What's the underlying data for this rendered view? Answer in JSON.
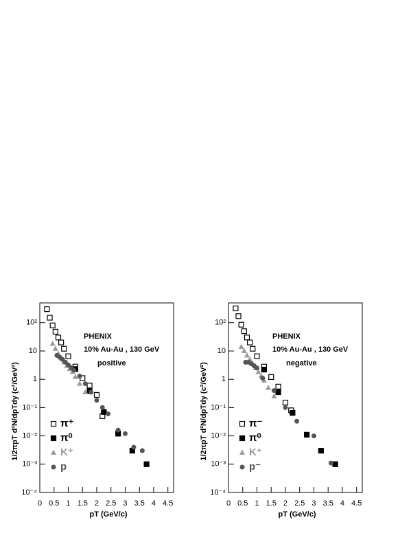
{
  "chart_data": [
    {
      "type": "scatter",
      "annotations": [
        "PHENIX",
        "10% Au-Au , 130 GeV",
        "positive"
      ],
      "x_label": "pT (GeV/c)",
      "y_label": "1/2πpT d²N/dpTdy (c²/GeV²)",
      "xlim": [
        0,
        4.7
      ],
      "ylim": [
        0.0001,
        500
      ],
      "log_y": true,
      "xticks": [
        0,
        0.5,
        1,
        1.5,
        2,
        2.5,
        3,
        3.5,
        4,
        4.5
      ],
      "yticks": [
        {
          "value": 0.0001,
          "label": "10⁻⁴"
        },
        {
          "value": 0.001,
          "label": "10⁻³"
        },
        {
          "value": 0.01,
          "label": "10⁻²"
        },
        {
          "value": 0.1,
          "label": "10⁻¹"
        },
        1,
        10,
        {
          "value": 100,
          "label": "10²"
        }
      ],
      "legend": "lower left",
      "series": [
        {
          "name": "π⁺",
          "color": "#000000",
          "marker": "open-square",
          "x": [
            0.25,
            0.35,
            0.45,
            0.55,
            0.65,
            0.75,
            0.85,
            1.0,
            1.25,
            1.5,
            1.75,
            2.0,
            2.2
          ],
          "values": [
            300,
            150,
            80,
            48,
            30,
            20,
            12,
            6.5,
            2.8,
            1.1,
            0.6,
            0.28,
            0.05
          ]
        },
        {
          "name": "π⁰",
          "color": "#000000",
          "marker": "square",
          "x": [
            1.25,
            1.75,
            2.25,
            2.75,
            3.25,
            3.75
          ],
          "values": [
            2.3,
            0.38,
            0.07,
            0.012,
            0.003,
            0.001
          ]
        },
        {
          "name": "K⁺",
          "color": "#999999",
          "marker": "triangle",
          "x": [
            0.45,
            0.55,
            0.65,
            0.75,
            0.85,
            0.95,
            1.05,
            1.15,
            1.25,
            1.4,
            1.6
          ],
          "values": [
            18,
            12,
            8,
            5.5,
            4,
            3,
            2.3,
            1.8,
            1.2,
            0.7,
            0.35
          ]
        },
        {
          "name": "p",
          "color": "#555555",
          "marker": "circle",
          "x": [
            0.6,
            0.7,
            0.8,
            0.9,
            1.0,
            1.1,
            1.2,
            1.4,
            1.6,
            1.8,
            2.0,
            2.2,
            2.4,
            2.75,
            3.0,
            3.3,
            3.6
          ],
          "values": [
            7,
            6,
            5,
            4,
            3.2,
            2.6,
            2.1,
            1.3,
            0.7,
            0.35,
            0.18,
            0.1,
            0.06,
            0.016,
            0.012,
            0.004,
            0.003
          ]
        }
      ]
    },
    {
      "type": "scatter",
      "annotations": [
        "PHENIX",
        "10% Au-Au , 130 GeV",
        "negative"
      ],
      "x_label": "pT (GeV/c)",
      "y_label": "1/2πpT d²N/dpTdy (c²/GeV²)",
      "xlim": [
        0,
        4.7
      ],
      "ylim": [
        0.0001,
        500
      ],
      "log_y": true,
      "xticks": [
        0,
        0.5,
        1,
        1.5,
        2,
        2.5,
        3,
        3.5,
        4,
        4.5
      ],
      "yticks": [
        {
          "value": 0.0001,
          "label": "10⁻⁴"
        },
        {
          "value": 0.001,
          "label": "10⁻³"
        },
        {
          "value": 0.01,
          "label": "10⁻²"
        },
        {
          "value": 0.1,
          "label": "10⁻¹"
        },
        1,
        10,
        {
          "value": 100,
          "label": "10²"
        }
      ],
      "legend": "lower left",
      "series": [
        {
          "name": "π⁻",
          "color": "#000000",
          "marker": "open-square",
          "x": [
            0.25,
            0.35,
            0.45,
            0.55,
            0.65,
            0.75,
            0.85,
            1.0,
            1.25,
            1.5,
            1.75,
            2.0,
            2.2
          ],
          "values": [
            320,
            170,
            85,
            50,
            30,
            20,
            12,
            6.5,
            2.8,
            1.2,
            0.55,
            0.15,
            0.08
          ]
        },
        {
          "name": "π⁰",
          "color": "#000000",
          "marker": "square",
          "x": [
            1.25,
            1.75,
            2.25,
            2.75,
            3.25,
            3.75
          ],
          "values": [
            2.2,
            0.35,
            0.065,
            0.011,
            0.003,
            0.001
          ]
        },
        {
          "name": "K⁺",
          "color": "#999999",
          "marker": "triangle",
          "x": [
            0.45,
            0.55,
            0.65,
            0.75,
            0.85,
            0.95,
            1.05,
            1.15,
            1.25,
            1.4,
            1.6
          ],
          "values": [
            14,
            10,
            7,
            5,
            3.5,
            2.5,
            1.8,
            1.3,
            0.9,
            0.5,
            0.25
          ]
        },
        {
          "name": "p⁻",
          "color": "#555555",
          "marker": "circle",
          "x": [
            0.6,
            0.7,
            0.8,
            0.9,
            1.0,
            1.2,
            1.6,
            2.0,
            2.4,
            3.0,
            3.6
          ],
          "values": [
            4,
            4,
            3.5,
            3,
            2.5,
            1.1,
            0.4,
            0.1,
            0.033,
            0.01,
            0.0011
          ]
        }
      ]
    }
  ]
}
